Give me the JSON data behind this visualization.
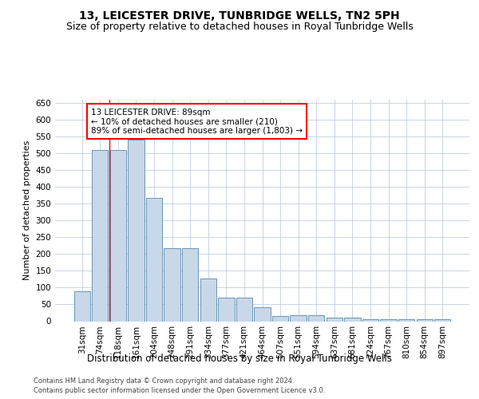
{
  "title": "13, LEICESTER DRIVE, TUNBRIDGE WELLS, TN2 5PH",
  "subtitle": "Size of property relative to detached houses in Royal Tunbridge Wells",
  "xlabel": "Distribution of detached houses by size in Royal Tunbridge Wells",
  "ylabel": "Number of detached properties",
  "footer_line1": "Contains HM Land Registry data © Crown copyright and database right 2024.",
  "footer_line2": "Contains public sector information licensed under the Open Government Licence v3.0.",
  "categories": [
    "31sqm",
    "74sqm",
    "118sqm",
    "161sqm",
    "204sqm",
    "248sqm",
    "291sqm",
    "334sqm",
    "377sqm",
    "421sqm",
    "464sqm",
    "507sqm",
    "551sqm",
    "594sqm",
    "637sqm",
    "681sqm",
    "724sqm",
    "767sqm",
    "810sqm",
    "854sqm",
    "897sqm"
  ],
  "values": [
    89,
    510,
    510,
    540,
    367,
    218,
    218,
    128,
    71,
    71,
    42,
    16,
    19,
    19,
    11,
    11,
    6,
    5,
    5,
    5,
    5
  ],
  "bar_color": "#c8d8e8",
  "bar_edge_color": "#5588aa",
  "annotation_text": "13 LEICESTER DRIVE: 89sqm\n← 10% of detached houses are smaller (210)\n89% of semi-detached houses are larger (1,803) →",
  "annotation_box_color": "white",
  "annotation_box_edge_color": "red",
  "red_line_x": 1.5,
  "ylim": [
    0,
    660
  ],
  "yticks": [
    0,
    50,
    100,
    150,
    200,
    250,
    300,
    350,
    400,
    450,
    500,
    550,
    600,
    650
  ],
  "background_color": "white",
  "grid_color": "#c0cfe0",
  "title_fontsize": 10,
  "subtitle_fontsize": 9,
  "xlabel_fontsize": 8.5,
  "ylabel_fontsize": 8,
  "tick_fontsize": 7.5,
  "annotation_fontsize": 7.5,
  "footer_fontsize": 6
}
